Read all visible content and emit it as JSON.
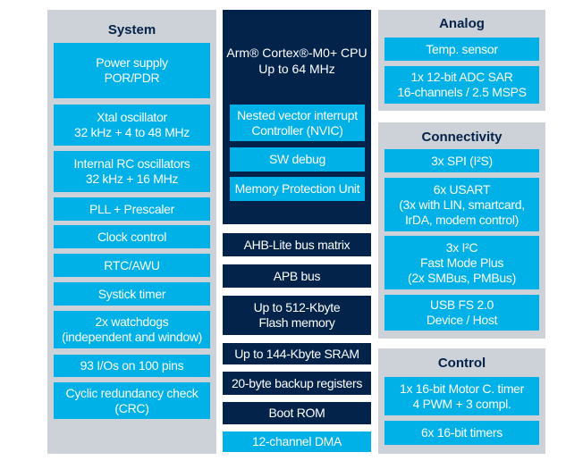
{
  "colors": {
    "panel": "#cdd1d8",
    "light_blue": "#00b1e7",
    "navy": "#03234b"
  },
  "system": {
    "title": "System",
    "items": [
      "Power supply\nPOR/PDR",
      "Xtal oscillator\n32 kHz + 4 to 48 MHz",
      "Internal RC oscillators\n32 kHz + 16 MHz",
      "PLL + Prescaler",
      "Clock control",
      "RTC/AWU",
      "Systick timer",
      "2x watchdogs\n(independent and window)",
      "93 I/Os on 100 pins",
      "Cyclic redundancy check\n(CRC)"
    ]
  },
  "core": {
    "cpu": "Arm® Cortex®-M0+ CPU\nUp to 64 MHz",
    "items": [
      "Nested vector interrupt\nController (NVIC)",
      "SW debug",
      "Memory Protection Unit"
    ]
  },
  "bus": {
    "items": [
      "AHB-Lite bus matrix",
      "APB bus",
      "Up to 512-Kbyte\nFlash memory",
      "Up to 144-Kbyte SRAM",
      "20-byte backup registers",
      "Boot ROM",
      "12-channel DMA"
    ]
  },
  "analog": {
    "title": "Analog",
    "items": [
      "Temp. sensor",
      "1x 12-bit ADC SAR\n16-channels / 2.5 MSPS"
    ]
  },
  "connectivity": {
    "title": "Connectivity",
    "items": [
      "3x SPI (I²S)",
      "6x USART\n(3x with LIN, smartcard,\nIrDA, modem control)",
      "3x I²C\nFast Mode Plus\n(2x SMBus, PMBus)",
      "USB FS 2.0\nDevice / Host"
    ]
  },
  "control": {
    "title": "Control",
    "items": [
      "1x 16-bit Motor C. timer\n4 PWM + 3 compl.",
      "6x 16-bit timers"
    ]
  }
}
